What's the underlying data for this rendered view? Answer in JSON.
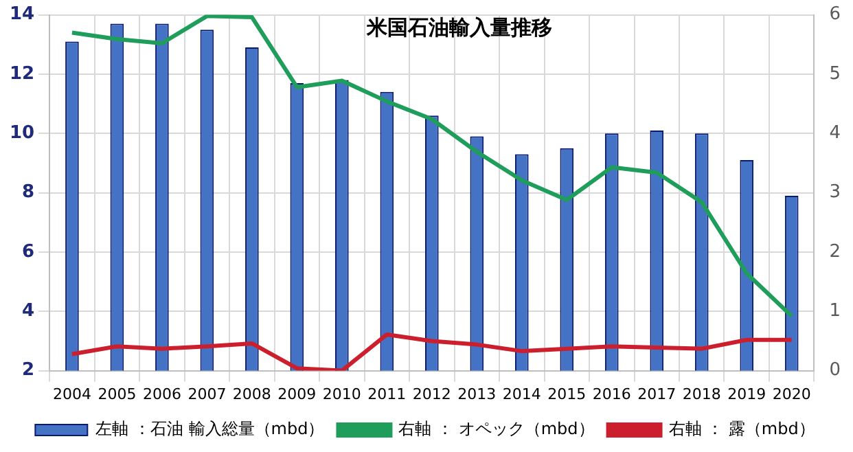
{
  "chart_data": {
    "type": "bar",
    "title": "米国石油輸入量推移",
    "categories": [
      "2004",
      "2005",
      "2006",
      "2007",
      "2008",
      "2009",
      "2010",
      "2011",
      "2012",
      "2013",
      "2014",
      "2015",
      "2016",
      "2017",
      "2018",
      "2019",
      "2020"
    ],
    "series": [
      {
        "name": "左軸 ：石油 輸入総量（mbd）",
        "color": "#4472c4",
        "values": [
          13.1,
          13.7,
          13.7,
          13.5,
          12.9,
          11.7,
          11.8,
          11.4,
          10.6,
          9.9,
          9.3,
          9.5,
          10.0,
          10.1,
          10.0,
          9.1,
          7.9
        ]
      },
      {
        "name": "右軸 ： オペック（mbd）",
        "type": "line",
        "axis": "y2",
        "color": "#1e9e5a",
        "values": [
          5.7,
          5.59,
          5.52,
          5.98,
          5.96,
          4.78,
          4.89,
          4.54,
          4.24,
          3.69,
          3.21,
          2.88,
          3.43,
          3.34,
          2.84,
          1.64,
          0.92
        ]
      },
      {
        "name": "右軸 ： 露（mbd）",
        "type": "line",
        "axis": "y2",
        "color": "#cc1f2e",
        "values": [
          0.28,
          0.41,
          0.37,
          0.41,
          0.46,
          0.04,
          0.0,
          0.61,
          0.5,
          0.44,
          0.33,
          0.37,
          0.41,
          0.39,
          0.37,
          0.52,
          0.52
        ]
      }
    ],
    "ylim": [
      2,
      14
    ],
    "yticks": [
      2,
      4,
      6,
      8,
      10,
      12,
      14
    ],
    "y2lim": [
      0,
      6
    ],
    "y2ticks": [
      0,
      1,
      2,
      3,
      4,
      5,
      6
    ],
    "grid": true,
    "legend": "bottom",
    "marker": "none",
    "line_style": "solid"
  }
}
